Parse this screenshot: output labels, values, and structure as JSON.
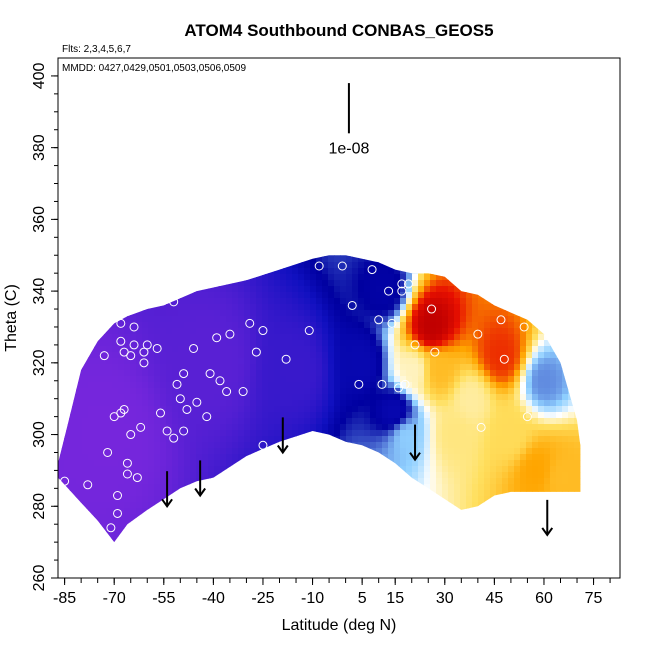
{
  "chart_data": {
    "type": "heatmap",
    "title": "ATOM4 Southbound CONBAS_GEOS5",
    "subtitle_flights": "Flts: 2,3,4,5,6,7",
    "subtitle_dates": "MMDD: 0427,0429,0501,0503,0506,0509",
    "xlabel": "Latitude (deg N)",
    "ylabel": "Theta (C)",
    "xlim": [
      -87,
      83
    ],
    "ylim": [
      260,
      405
    ],
    "xticks": [
      "-85",
      "-70",
      "-55",
      "-40",
      "-25",
      "-10",
      "5",
      "15",
      "30",
      "45",
      "60",
      "75"
    ],
    "xtick_values": [
      -85,
      -70,
      -55,
      -40,
      -25,
      -10,
      5,
      15,
      30,
      45,
      60,
      75
    ],
    "xminor_step": 5,
    "yticks": [
      "260",
      "280",
      "300",
      "320",
      "340",
      "360",
      "380",
      "400"
    ],
    "ytick_values": [
      260,
      280,
      300,
      320,
      340,
      360,
      380,
      400
    ],
    "scale_label": "1e-08",
    "colors": {
      "low": "#8a2be2",
      "mid_blue": "#1010c0",
      "dark_blue": "#0000a0",
      "light_blue": "#90d0ff",
      "white": "#ffffff",
      "yellow": "#ffe060",
      "orange": "#ffa500",
      "red": "#e81000",
      "dark_red": "#c00000"
    },
    "field_envelope": {
      "lat": [
        -87,
        -84,
        -80,
        -75,
        -70,
        -66,
        -60,
        -55,
        -50,
        -45,
        -40,
        -30,
        -20,
        -10,
        -5,
        0,
        5,
        10,
        15,
        20,
        25,
        30,
        35,
        40,
        45,
        50,
        55,
        60,
        65,
        70,
        71
      ],
      "theta_top": [
        292,
        303,
        318,
        326,
        331,
        333,
        335,
        336,
        338,
        340,
        341,
        343,
        346,
        349,
        350,
        350,
        349,
        348,
        346,
        345,
        345,
        344,
        340,
        339,
        336,
        334,
        332,
        328,
        320,
        304,
        297
      ],
      "theta_bottom": [
        288,
        285,
        281,
        276,
        270,
        275,
        279,
        282,
        285,
        287,
        288,
        294,
        298,
        301,
        300,
        298,
        297,
        295,
        292,
        288,
        285,
        282,
        279,
        280,
        283,
        284,
        284,
        284,
        284,
        284,
        284
      ]
    },
    "blobs": [
      {
        "lat": -72,
        "theta": 300,
        "value": 0.05
      },
      {
        "lat": -40,
        "theta": 320,
        "value": 0.12
      },
      {
        "lat": -15,
        "theta": 318,
        "value": 0.2
      },
      {
        "lat": 5,
        "theta": 320,
        "value": 0.33
      },
      {
        "lat": 12,
        "theta": 340,
        "value": 0.35
      },
      {
        "lat": 15,
        "theta": 306,
        "value": 0.33
      },
      {
        "lat": 18,
        "theta": 300,
        "value": 0.45
      },
      {
        "lat": 21,
        "theta": 318,
        "value": 0.56
      },
      {
        "lat": 26,
        "theta": 330,
        "value": 1.0
      },
      {
        "lat": 28,
        "theta": 318,
        "value": 0.7
      },
      {
        "lat": 33,
        "theta": 300,
        "value": 0.6
      },
      {
        "lat": 38,
        "theta": 310,
        "value": 0.58
      },
      {
        "lat": 47,
        "theta": 322,
        "value": 0.87
      },
      {
        "lat": 50,
        "theta": 300,
        "value": 0.63
      },
      {
        "lat": 58,
        "theta": 290,
        "value": 0.75
      },
      {
        "lat": 65,
        "theta": 288,
        "value": 0.7
      },
      {
        "lat": 60,
        "theta": 315,
        "value": 0.42
      }
    ],
    "observations": [
      {
        "lat": -85,
        "theta": 287
      },
      {
        "lat": -80,
        "theta": 321
      },
      {
        "lat": -78,
        "theta": 286
      },
      {
        "lat": -73,
        "theta": 322
      },
      {
        "lat": -72,
        "theta": 295
      },
      {
        "lat": -71,
        "theta": 274
      },
      {
        "lat": -70,
        "theta": 305
      },
      {
        "lat": -69,
        "theta": 283
      },
      {
        "lat": -69,
        "theta": 278
      },
      {
        "lat": -68,
        "theta": 331
      },
      {
        "lat": -68,
        "theta": 326
      },
      {
        "lat": -68,
        "theta": 306
      },
      {
        "lat": -67,
        "theta": 323
      },
      {
        "lat": -67,
        "theta": 307
      },
      {
        "lat": -66,
        "theta": 292
      },
      {
        "lat": -66,
        "theta": 289
      },
      {
        "lat": -65,
        "theta": 322
      },
      {
        "lat": -65,
        "theta": 300
      },
      {
        "lat": -64,
        "theta": 330
      },
      {
        "lat": -64,
        "theta": 325
      },
      {
        "lat": -63,
        "theta": 288
      },
      {
        "lat": -62,
        "theta": 302
      },
      {
        "lat": -61,
        "theta": 323
      },
      {
        "lat": -61,
        "theta": 320
      },
      {
        "lat": -60,
        "theta": 325
      },
      {
        "lat": -57,
        "theta": 324
      },
      {
        "lat": -56,
        "theta": 306
      },
      {
        "lat": -54,
        "theta": 301
      },
      {
        "lat": -52,
        "theta": 337
      },
      {
        "lat": -52,
        "theta": 299
      },
      {
        "lat": -51,
        "theta": 314
      },
      {
        "lat": -50,
        "theta": 310
      },
      {
        "lat": -49,
        "theta": 301
      },
      {
        "lat": -49,
        "theta": 317
      },
      {
        "lat": -48,
        "theta": 307
      },
      {
        "lat": -46,
        "theta": 324
      },
      {
        "lat": -45,
        "theta": 309
      },
      {
        "lat": -42,
        "theta": 305
      },
      {
        "lat": -41,
        "theta": 317
      },
      {
        "lat": -39,
        "theta": 327
      },
      {
        "lat": -38,
        "theta": 315
      },
      {
        "lat": -36,
        "theta": 312
      },
      {
        "lat": -35,
        "theta": 328
      },
      {
        "lat": -31,
        "theta": 312
      },
      {
        "lat": -29,
        "theta": 331
      },
      {
        "lat": -27,
        "theta": 323
      },
      {
        "lat": -25,
        "theta": 297
      },
      {
        "lat": -25,
        "theta": 329
      },
      {
        "lat": -18,
        "theta": 321
      },
      {
        "lat": -11,
        "theta": 329
      },
      {
        "lat": -8,
        "theta": 347
      },
      {
        "lat": -1,
        "theta": 347
      },
      {
        "lat": 2,
        "theta": 336
      },
      {
        "lat": 4,
        "theta": 314
      },
      {
        "lat": 8,
        "theta": 346
      },
      {
        "lat": 10,
        "theta": 332
      },
      {
        "lat": 11,
        "theta": 314
      },
      {
        "lat": 13,
        "theta": 340
      },
      {
        "lat": 14,
        "theta": 331
      },
      {
        "lat": 16,
        "theta": 313
      },
      {
        "lat": 17,
        "theta": 342
      },
      {
        "lat": 17,
        "theta": 340
      },
      {
        "lat": 18,
        "theta": 314
      },
      {
        "lat": 19,
        "theta": 342
      },
      {
        "lat": 21,
        "theta": 325
      },
      {
        "lat": 26,
        "theta": 335
      },
      {
        "lat": 27,
        "theta": 323
      },
      {
        "lat": 40,
        "theta": 328
      },
      {
        "lat": 41,
        "theta": 302
      },
      {
        "lat": 47,
        "theta": 332
      },
      {
        "lat": 48,
        "theta": 321
      },
      {
        "lat": 54,
        "theta": 330
      },
      {
        "lat": 55,
        "theta": 305
      }
    ],
    "arrows": [
      {
        "lat": -54,
        "theta_from": 287,
        "theta_to": 280
      },
      {
        "lat": -44,
        "theta_from": 290,
        "theta_to": 283
      },
      {
        "lat": -19,
        "theta_from": 302,
        "theta_to": 295
      },
      {
        "lat": 21,
        "theta_from": 300,
        "theta_to": 293
      },
      {
        "lat": 61,
        "theta_from": 279,
        "theta_to": 272
      }
    ],
    "scale_bar": {
      "lat": 1,
      "theta_from": 398,
      "theta_to": 384
    }
  }
}
